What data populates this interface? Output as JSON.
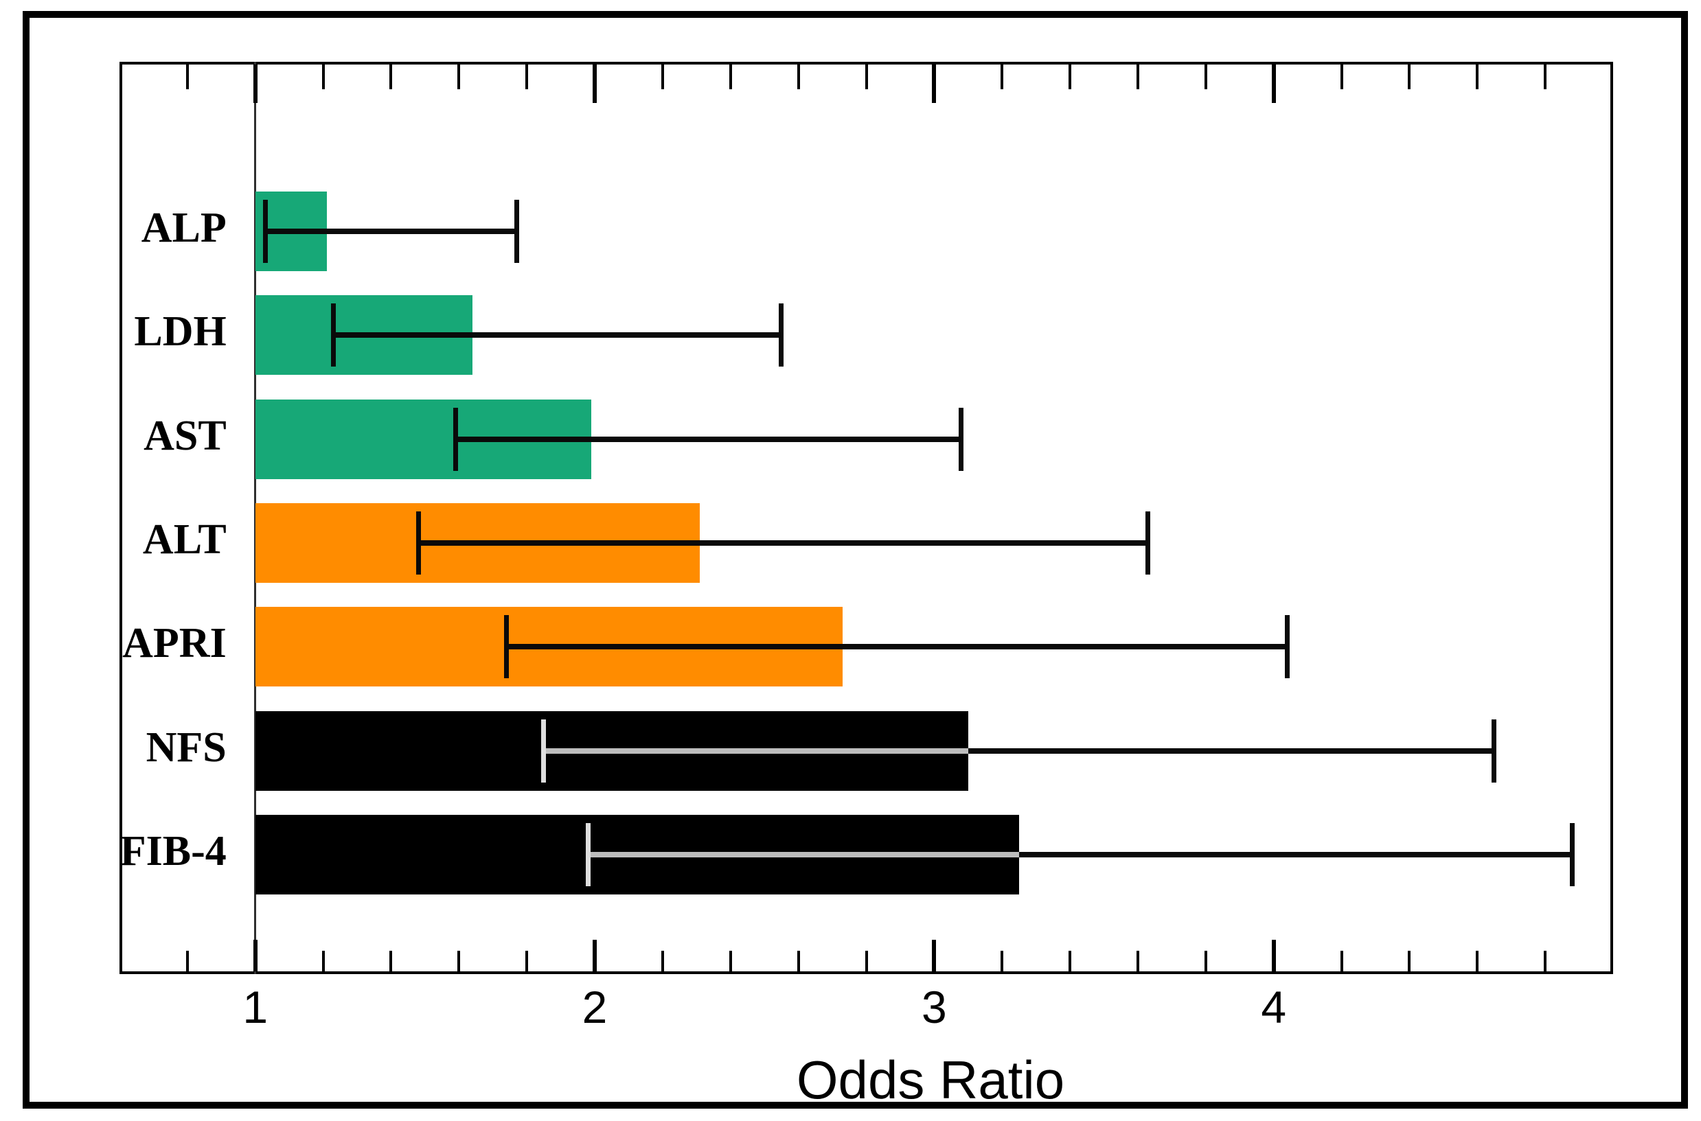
{
  "chart_data": {
    "type": "bar",
    "orientation": "horizontal",
    "title": "",
    "xlabel": "Odds Ratio",
    "ylabel": "",
    "xlim": [
      0.6,
      5.0
    ],
    "xticks": [
      1,
      2,
      3,
      4
    ],
    "minor_tick_step": 0.2,
    "bar_base": 1.0,
    "reference_line_x": 1.0,
    "grid": false,
    "legend": false,
    "error_bars": "95% CI caps",
    "categories": [
      "ALP",
      "LDH",
      "AST",
      "ALT",
      "APRI",
      "NFS",
      "FIB-4"
    ],
    "series": [
      {
        "label": "ALP",
        "odds_ratio": 1.21,
        "ci_low": 1.03,
        "ci_high": 1.77,
        "color": "#17a877"
      },
      {
        "label": "LDH",
        "odds_ratio": 1.64,
        "ci_low": 1.23,
        "ci_high": 2.55,
        "color": "#17a877"
      },
      {
        "label": "AST",
        "odds_ratio": 1.99,
        "ci_low": 1.59,
        "ci_high": 3.08,
        "color": "#17a877"
      },
      {
        "label": "ALT",
        "odds_ratio": 2.31,
        "ci_low": 1.48,
        "ci_high": 3.63,
        "color": "#ff8c00"
      },
      {
        "label": "APRI",
        "odds_ratio": 2.73,
        "ci_low": 1.74,
        "ci_high": 4.04,
        "color": "#ff8c00"
      },
      {
        "label": "NFS",
        "odds_ratio": 3.1,
        "ci_low": 1.85,
        "ci_high": 4.65,
        "color": "#000000"
      },
      {
        "label": "FIB-4",
        "odds_ratio": 3.25,
        "ci_low": 1.98,
        "ci_high": 4.88,
        "color": "#000000"
      }
    ],
    "colors": {
      "green_bars": "#17a877",
      "orange_bars": "#ff8c00",
      "black_bars": "#000000",
      "error_line": "#0a0a0a",
      "error_line_inside_black_bar": "#bdbdbd",
      "error_cap_inside_black_bar": "#dedede",
      "frame": "#000000",
      "background": "#ffffff"
    }
  }
}
